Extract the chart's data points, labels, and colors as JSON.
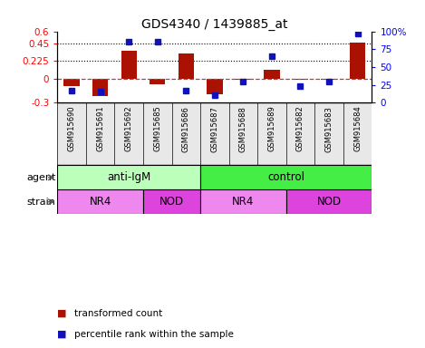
{
  "title": "GDS4340 / 1439885_at",
  "samples": [
    "GSM915690",
    "GSM915691",
    "GSM915692",
    "GSM915685",
    "GSM915686",
    "GSM915687",
    "GSM915688",
    "GSM915689",
    "GSM915682",
    "GSM915683",
    "GSM915684"
  ],
  "bar_values": [
    -0.09,
    -0.22,
    0.35,
    -0.065,
    0.32,
    -0.19,
    -0.015,
    0.115,
    -0.01,
    -0.01,
    0.46
  ],
  "dot_values": [
    17,
    15,
    85,
    85,
    17,
    10,
    30,
    65,
    23,
    30,
    97
  ],
  "ylim_left": [
    -0.3,
    0.6
  ],
  "ylim_right": [
    0,
    100
  ],
  "yticks_left": [
    -0.3,
    0.0,
    0.225,
    0.45,
    0.6
  ],
  "yticks_right": [
    0,
    25,
    50,
    75,
    100
  ],
  "ytick_labels_left": [
    "-0.3",
    "0",
    "0.225",
    "0.45",
    "0.6"
  ],
  "ytick_labels_right": [
    "0",
    "25",
    "50",
    "75",
    "100%"
  ],
  "hlines": [
    0.225,
    0.45
  ],
  "bar_color": "#AA1100",
  "dot_color": "#1111BB",
  "zero_line_color": "#CC3333",
  "agent_groups": [
    {
      "label": "anti-IgM",
      "start": 0,
      "end": 5,
      "color": "#BBFFBB"
    },
    {
      "label": "control",
      "start": 5,
      "end": 11,
      "color": "#44EE44"
    }
  ],
  "strain_groups": [
    {
      "label": "NR4",
      "start": 0,
      "end": 3,
      "color": "#EE88EE"
    },
    {
      "label": "NOD",
      "start": 3,
      "end": 5,
      "color": "#DD44DD"
    },
    {
      "label": "NR4",
      "start": 5,
      "end": 8,
      "color": "#EE88EE"
    },
    {
      "label": "NOD",
      "start": 8,
      "end": 11,
      "color": "#DD44DD"
    }
  ],
  "label_agent": "agent",
  "label_strain": "strain",
  "legend_bar_label": "transformed count",
  "legend_dot_label": "percentile rank within the sample",
  "bar_width": 0.55,
  "xlabel_fontsize": 6.0,
  "title_fontsize": 10,
  "tick_fontsize": 7.5,
  "group_fontsize": 8.5,
  "label_fontsize": 8,
  "legend_fontsize": 7.5
}
